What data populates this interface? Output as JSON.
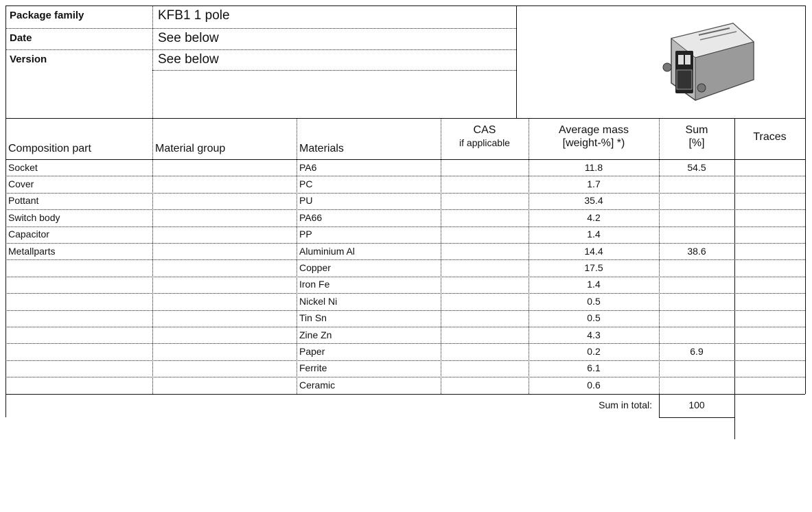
{
  "header": {
    "rows": [
      [
        "Package family",
        "KFB1  1 pole"
      ],
      [
        "Date",
        "See below"
      ],
      [
        "Version",
        "See below"
      ]
    ]
  },
  "table": {
    "columns": [
      "Composition part",
      "Material group",
      "Materials",
      [
        "CAS",
        "if applicable"
      ],
      [
        "Average mass",
        "[weight-%] *)"
      ],
      [
        "Sum",
        "[%]"
      ],
      "Traces"
    ],
    "rows": [
      {
        "part": "Socket",
        "material": "PA6",
        "mass": "11.8",
        "sum": "54.5"
      },
      {
        "part": "Cover",
        "material": "PC",
        "mass": "1.7"
      },
      {
        "part": "Pottant",
        "material": "PU",
        "mass": "35.4"
      },
      {
        "part": "Switch body",
        "material": "PA66",
        "mass": "4.2"
      },
      {
        "part": "Capacitor",
        "material": "PP",
        "mass": "1.4"
      },
      {
        "part": "Metallparts",
        "material": "Aluminium Al",
        "mass": "14.4",
        "sum": "38.6"
      },
      {
        "material": "Copper",
        "mass": "17.5"
      },
      {
        "material": "Iron Fe",
        "mass": "1.4"
      },
      {
        "material": "Nickel Ni",
        "mass": "0.5"
      },
      {
        "material": "Tin Sn",
        "mass": "0.5"
      },
      {
        "material": "Zine Zn",
        "mass": "4.3"
      },
      {
        "material": "Paper",
        "mass": "0.2",
        "sum": "6.9"
      },
      {
        "material": "Ferrite",
        "mass": "6.1"
      },
      {
        "material": "Ceramic",
        "mass": "0.6"
      }
    ],
    "total": {
      "label": "Sum in total:",
      "value": "100"
    }
  }
}
